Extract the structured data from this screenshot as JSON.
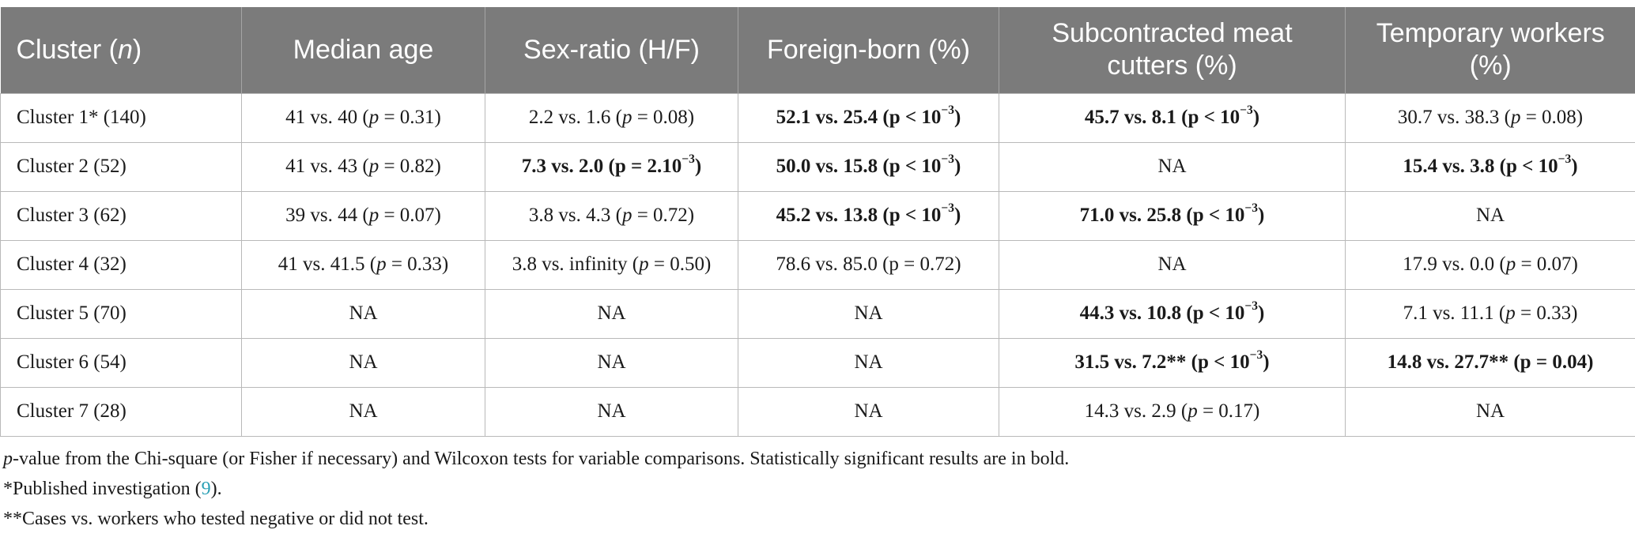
{
  "header": {
    "cluster": "Cluster",
    "cluster_n": "n",
    "median_age": "Median age",
    "sex_ratio": "Sex-ratio (H/F)",
    "foreign_born": "Foreign-born (%)",
    "subcontracted": "Subcontracted meat cutters (%)",
    "temporary": "Temporary workers (%)"
  },
  "rows": [
    {
      "cluster": "Cluster 1* (140)",
      "median_age": {
        "main": "41 vs. 40",
        "p": "0.31",
        "sig": false
      },
      "sex_ratio": {
        "main": "2.2 vs. 1.6",
        "p": "0.08",
        "sig": false
      },
      "foreign_born": {
        "main": "52.1 vs. 25.4",
        "p_exp": "10",
        "p_sup": "−3",
        "sig": true
      },
      "subcontracted": {
        "main": "45.7 vs. 8.1",
        "p_exp": "10",
        "p_sup": "−3",
        "sig": true
      },
      "temporary": {
        "main": "30.7 vs. 38.3",
        "p": "0.08",
        "sig": false
      }
    },
    {
      "cluster": "Cluster 2 (52)",
      "median_age": {
        "main": "41 vs. 43",
        "p": "0.82",
        "sig": false
      },
      "sex_ratio": {
        "main": "7.3 vs. 2.0",
        "p_eq_base": "2.10",
        "p_sup": "−3",
        "sig": true
      },
      "foreign_born": {
        "main": "50.0 vs. 15.8",
        "p_exp": "10",
        "p_sup": "−3",
        "sig": true
      },
      "subcontracted": {
        "na": "NA"
      },
      "temporary": {
        "main": "15.4 vs. 3.8",
        "p_exp": "10",
        "p_sup": "−3",
        "sig": true
      }
    },
    {
      "cluster": "Cluster 3 (62)",
      "median_age": {
        "main": "39 vs. 44",
        "p": "0.07",
        "sig": false
      },
      "sex_ratio": {
        "main": "3.8 vs. 4.3",
        "p": "0.72",
        "sig": false
      },
      "foreign_born": {
        "main": "45.2 vs. 13.8",
        "p_exp": "10",
        "p_sup": "−3",
        "sig": true
      },
      "subcontracted": {
        "main": "71.0 vs. 25.8",
        "p_exp": "10",
        "p_sup": "−3",
        "sig": true
      },
      "temporary": {
        "na": "NA"
      }
    },
    {
      "cluster": "Cluster 4 (32)",
      "median_age": {
        "main": "41 vs. 41.5",
        "p": "0.33",
        "sig": false
      },
      "sex_ratio": {
        "main": "3.8 vs. infinity",
        "p": "0.50",
        "sig": false
      },
      "foreign_born": {
        "text": "78.6 vs. 85.0 (p = 0.72)",
        "sig": false
      },
      "subcontracted": {
        "na": "NA"
      },
      "temporary": {
        "main": "17.9 vs. 0.0",
        "p": "0.07",
        "sig": false
      }
    },
    {
      "cluster": "Cluster 5 (70)",
      "median_age": {
        "na": "NA"
      },
      "sex_ratio": {
        "na": "NA"
      },
      "foreign_born": {
        "na": "NA"
      },
      "subcontracted": {
        "main": "44.3 vs. 10.8",
        "p_exp": "10",
        "p_sup": "−3",
        "sig": true
      },
      "temporary": {
        "main": "7.1 vs. 11.1",
        "p": "0.33",
        "sig": false
      }
    },
    {
      "cluster": "Cluster 6 (54)",
      "median_age": {
        "na": "NA"
      },
      "sex_ratio": {
        "na": "NA"
      },
      "foreign_born": {
        "na": "NA"
      },
      "subcontracted": {
        "main": "31.5 vs. 7.2**",
        "p_exp": "10",
        "p_sup": "−3",
        "sig": true
      },
      "temporary": {
        "text": "14.8 vs. 27.7** (p = 0.04)",
        "sig": true
      }
    },
    {
      "cluster": "Cluster 7 (28)",
      "median_age": {
        "na": "NA"
      },
      "sex_ratio": {
        "na": "NA"
      },
      "foreign_born": {
        "na": "NA"
      },
      "subcontracted": {
        "main": "14.3 vs. 2.9",
        "p": "0.17",
        "sig": false
      },
      "temporary": {
        "na": "NA"
      }
    }
  ],
  "footnotes": {
    "pvalue_p": "p",
    "pvalue_rest": "-value from the Chi-square (or Fisher if necessary) and Wilcoxon tests for variable comparisons. Statistically significant results are in bold.",
    "published_text": "*Published investigation (",
    "published_ref": "9",
    "published_close": ").",
    "cases_text": "**Cases vs. workers who tested negative or did not test."
  },
  "colors": {
    "header_bg": "#7b7b7b",
    "header_text": "#ffffff",
    "grid": "#b9b9b9",
    "ref_link": "#2aa0b5"
  }
}
